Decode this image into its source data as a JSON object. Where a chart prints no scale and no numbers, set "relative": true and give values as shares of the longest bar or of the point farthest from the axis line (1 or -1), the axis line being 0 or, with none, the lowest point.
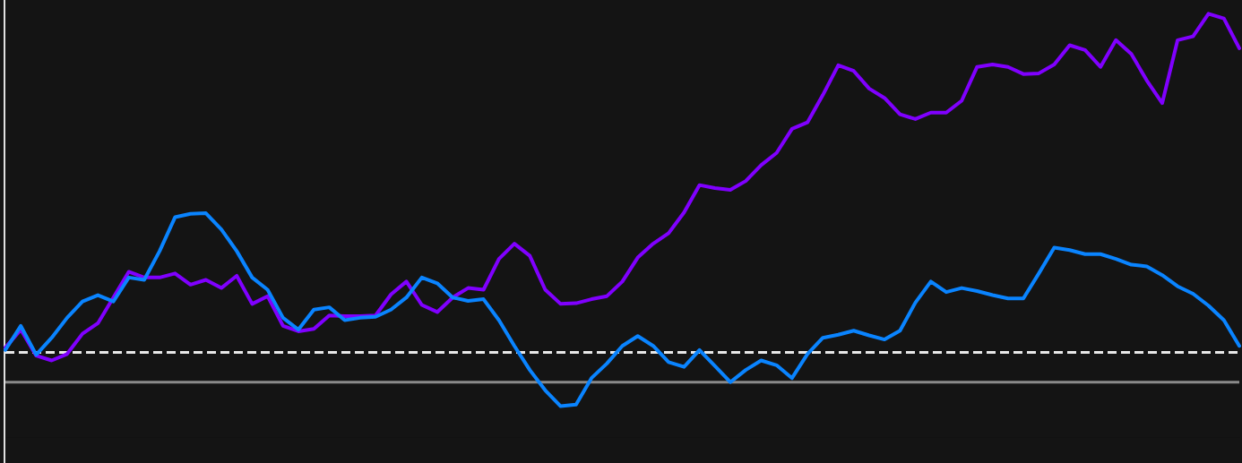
{
  "chart_data": {
    "type": "line",
    "relative": true,
    "legend": false,
    "categories": [
      null,
      null,
      null,
      null,
      null,
      null,
      null,
      null,
      null,
      null,
      null,
      null,
      null,
      null,
      null,
      null,
      null,
      null,
      null,
      null,
      null,
      null,
      null,
      null,
      null,
      null,
      null,
      null,
      null,
      null,
      null,
      null,
      null,
      null,
      null,
      null,
      null,
      null,
      null,
      null,
      null,
      null,
      null,
      null,
      null,
      null,
      null,
      null,
      null,
      null,
      null,
      null,
      null,
      null,
      null,
      null,
      null,
      null,
      null,
      null,
      null,
      null,
      null,
      null,
      null,
      null,
      null,
      null,
      null,
      null,
      null,
      null,
      null,
      null,
      null,
      null,
      null,
      null,
      null,
      null,
      null
    ],
    "series": [
      {
        "color": "#0a84ff",
        "values": [
          0.007,
          0.078,
          -0.007,
          0.043,
          0.102,
          0.15,
          0.169,
          0.15,
          0.221,
          0.214,
          0.299,
          0.399,
          0.409,
          0.411,
          0.363,
          0.299,
          0.221,
          0.185,
          0.102,
          0.067,
          0.126,
          0.133,
          0.095,
          0.102,
          0.105,
          0.126,
          0.162,
          0.221,
          0.204,
          0.162,
          0.152,
          0.157,
          0.095,
          0.019,
          -0.052,
          -0.112,
          -0.159,
          -0.154,
          -0.076,
          -0.033,
          0.019,
          0.048,
          0.019,
          -0.029,
          -0.043,
          0.007,
          -0.04,
          -0.088,
          -0.052,
          -0.024,
          -0.038,
          -0.076,
          -0.005,
          0.043,
          0.052,
          0.064,
          0.05,
          0.038,
          0.064,
          0.147,
          0.209,
          0.178,
          0.19,
          0.181,
          0.169,
          0.159,
          0.159,
          0.233,
          0.309,
          0.302,
          0.29,
          0.29,
          0.276,
          0.259,
          0.254,
          0.228,
          0.195,
          0.173,
          0.138,
          0.095,
          0.019
        ]
      },
      {
        "color": "#8000ff",
        "values": [
          0.014,
          0.067,
          -0.01,
          -0.024,
          -0.005,
          0.055,
          0.086,
          0.162,
          0.238,
          0.221,
          0.221,
          0.233,
          0.2,
          0.214,
          0.19,
          0.226,
          0.143,
          0.166,
          0.078,
          0.062,
          0.069,
          0.109,
          0.107,
          0.107,
          0.109,
          0.171,
          0.209,
          0.14,
          0.119,
          0.162,
          0.19,
          0.185,
          0.276,
          0.321,
          0.285,
          0.185,
          0.143,
          0.145,
          0.157,
          0.166,
          0.209,
          0.28,
          0.321,
          0.352,
          0.413,
          0.494,
          0.485,
          0.48,
          0.506,
          0.553,
          0.589,
          0.66,
          0.679,
          0.76,
          0.848,
          0.831,
          0.779,
          0.751,
          0.703,
          0.689,
          0.708,
          0.708,
          0.743,
          0.843,
          0.85,
          0.843,
          0.822,
          0.824,
          0.85,
          0.907,
          0.893,
          0.843,
          0.922,
          0.881,
          0.803,
          0.736,
          0.922,
          0.933,
          1,
          0.986,
          0.898
        ]
      }
    ],
    "ref_lines": [
      {
        "axis": "y",
        "value": 0,
        "color": "#e8e8e8",
        "line_style": "dashed"
      },
      {
        "axis": "y",
        "value": -0.088,
        "color": "#8a8a8a",
        "line_style": "solid"
      }
    ]
  }
}
